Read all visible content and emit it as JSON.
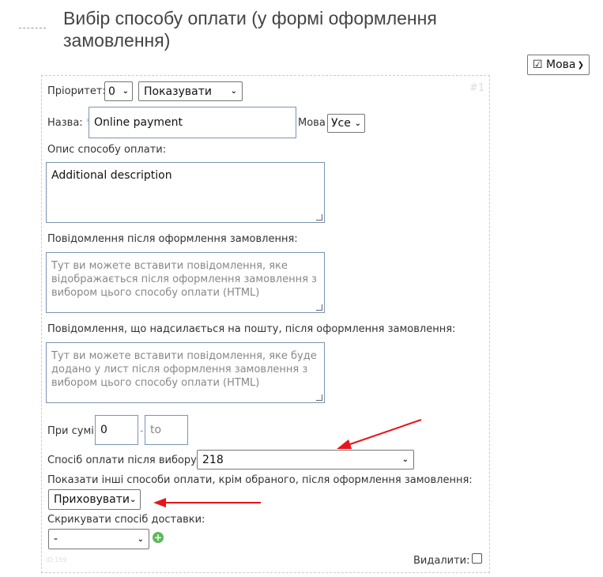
{
  "title": "Вибір способу оплати (у формі оформлення замовлення)",
  "lang_select": "☑ Мова",
  "card": {
    "number": "#1",
    "priority_label": "Пріоритет:",
    "priority_value": "0",
    "visibility_value": "Показувати",
    "name_label": "Назва:",
    "required_mark": "*",
    "name_value": "Online payment",
    "lang_label": "Мова",
    "lang_value": "Усе",
    "desc_label": "Опис способу оплати:",
    "desc_value": "Additional description",
    "msg_label": "Повідомлення після оформлення замовлення:",
    "msg_placeholder": "Тут ви можете вставити повідомлення, яке відображається після оформлення замовлення з вибором цього способу оплати (HTML)",
    "email_label": "Повідомлення, що надсилається на пошту, після оформлення замовлення:",
    "email_placeholder": "Тут ви можете вставити повідомлення, яке буде додано у лист після оформлення замовлення з вибором цього способу оплати (HTML)",
    "sum_label": "При сумі:",
    "sum_from": "0",
    "sum_sep": "-",
    "sum_to_placeholder": "to",
    "after_label": "Спосіб оплати після вибору:",
    "after_value": "218",
    "others_label": "Показати інші способи оплати, крім обраного, після оформлення замовлення:",
    "others_value": "Приховувати",
    "delivery_label": "Скрикувати спосіб доставки:",
    "delivery_value": "-",
    "id_text": "ID:159",
    "delete_label": "Видалити:"
  },
  "colors": {
    "arrow": "#e8141a",
    "add": "#5cb85c"
  }
}
